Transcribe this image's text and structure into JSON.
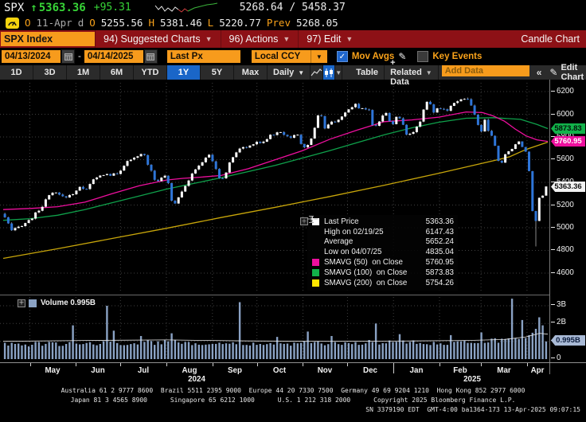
{
  "top": {
    "ticker": "SPX",
    "arrow": "↑",
    "last": "5363.36",
    "change": "+95.31",
    "range": "5268.64 / 5458.37",
    "o_label": "O",
    "date": "11-Apr",
    "freq": "d",
    "o2_label": "O",
    "open": "5255.56",
    "h_label": "H",
    "high": "5381.46",
    "l_label": "L",
    "low": "5220.77",
    "prev_label": "Prev",
    "prev": "5268.05"
  },
  "menubar": {
    "security": "SPX Index",
    "items": [
      {
        "label": "94) Suggested Charts"
      },
      {
        "label": "96) Actions"
      },
      {
        "label": "97) Edit"
      }
    ],
    "right_label": "Candle Chart"
  },
  "toolbar": {
    "date_from": "04/13/2024",
    "date_sep": "-",
    "date_to": "04/14/2025",
    "price_field": "Last Px",
    "currency": "Local CCY",
    "mov_avgs": "Mov Avgs",
    "key_events": "Key Events"
  },
  "tabbar": {
    "periods": [
      "1D",
      "3D",
      "1M",
      "6M",
      "YTD",
      "1Y",
      "5Y",
      "Max"
    ],
    "active_period": "1Y",
    "frequency": "Daily",
    "table": "Table",
    "related": "+ Related Data",
    "add_data_placeholder": "Add Data",
    "edit_chart": "Edit Chart"
  },
  "colors": {
    "green_text": "#37d437",
    "orange_text": "#f9a21a",
    "menubar_red": "#8d1116",
    "tab_blue": "#1a66c8",
    "amber": "#f79b1c",
    "candle_up": "#ffffff",
    "candle_down": "#2e75d8",
    "smavg50": "#ee0f9e",
    "smavg100": "#0fa14b",
    "smavg200": "#c7a50a",
    "volume_bar": "#8aa2c4",
    "volume_avg_line": "#e8e8e8",
    "grid": "#3f3f3f"
  },
  "chart_data": {
    "type": "candlestick+volume",
    "title": "SPX Index 1Y Daily Candle Chart",
    "last_price": 5363.36,
    "y_ticks": [
      6200,
      6000,
      5800,
      5600,
      5400,
      5200,
      5000,
      4800,
      4600
    ],
    "y_range": [
      4466,
      6305
    ],
    "price_badges": [
      {
        "text": "5873.83",
        "price": 5873.83,
        "bg": "#12b24a",
        "fg": "#04130a"
      },
      {
        "text": "5760.95",
        "price": 5760.95,
        "bg": "#ee0f9e",
        "fg": "#ffffff"
      },
      {
        "text": "5363.36",
        "price": 5363.36,
        "bg": "#f2f2f2",
        "fg": "#111111"
      }
    ],
    "month_ticks": [
      0.049,
      0.1335,
      0.2153,
      0.2997,
      0.3842,
      0.4659,
      0.5504,
      0.6322,
      0.7166,
      0.8011,
      0.8774,
      0.9619
    ],
    "year_separator": 0.7166,
    "months": [
      {
        "label": "May",
        "f": 0.091
      },
      {
        "label": "Jun",
        "f": 0.174
      },
      {
        "label": "Jul",
        "f": 0.258
      },
      {
        "label": "Aug",
        "f": 0.342
      },
      {
        "label": "Sep",
        "f": 0.425
      },
      {
        "label": "Oct",
        "f": 0.508
      },
      {
        "label": "Nov",
        "f": 0.591
      },
      {
        "label": "Dec",
        "f": 0.674
      },
      {
        "label": "Jan",
        "f": 0.759
      },
      {
        "label": "Feb",
        "f": 0.839
      },
      {
        "label": "Mar",
        "f": 0.92
      },
      {
        "label": "Apr",
        "f": 0.981
      }
    ],
    "years": [
      {
        "label": "2024",
        "f": 0.355
      },
      {
        "label": "2025",
        "f": 0.861
      }
    ],
    "price_path": [
      [
        0,
        5123
      ],
      [
        0.016,
        4967
      ],
      [
        0.03,
        5012
      ],
      [
        0.05,
        5072
      ],
      [
        0.07,
        5180
      ],
      [
        0.088,
        5308
      ],
      [
        0.1,
        5298
      ],
      [
        0.11,
        5267
      ],
      [
        0.125,
        5290
      ],
      [
        0.14,
        5353
      ],
      [
        0.155,
        5346
      ],
      [
        0.165,
        5421
      ],
      [
        0.185,
        5473
      ],
      [
        0.2,
        5464
      ],
      [
        0.21,
        5475
      ],
      [
        0.225,
        5572
      ],
      [
        0.245,
        5618
      ],
      [
        0.257,
        5667
      ],
      [
        0.263,
        5588
      ],
      [
        0.272,
        5507
      ],
      [
        0.28,
        5399
      ],
      [
        0.29,
        5452
      ],
      [
        0.3,
        5446
      ],
      [
        0.306,
        5346
      ],
      [
        0.311,
        5186
      ],
      [
        0.318,
        5240
      ],
      [
        0.33,
        5344
      ],
      [
        0.345,
        5455
      ],
      [
        0.36,
        5554
      ],
      [
        0.375,
        5626
      ],
      [
        0.379,
        5648
      ],
      [
        0.39,
        5528
      ],
      [
        0.398,
        5408
      ],
      [
        0.41,
        5495
      ],
      [
        0.42,
        5618
      ],
      [
        0.435,
        5702
      ],
      [
        0.45,
        5709
      ],
      [
        0.463,
        5762
      ],
      [
        0.475,
        5746
      ],
      [
        0.49,
        5815
      ],
      [
        0.51,
        5842
      ],
      [
        0.52,
        5815
      ],
      [
        0.532,
        5797
      ],
      [
        0.542,
        5832
      ],
      [
        0.548,
        5705
      ],
      [
        0.557,
        5718
      ],
      [
        0.566,
        5783
      ],
      [
        0.578,
        5995
      ],
      [
        0.585,
        5987
      ],
      [
        0.59,
        5870
      ],
      [
        0.6,
        5917
      ],
      [
        0.612,
        5949
      ],
      [
        0.622,
        5969
      ],
      [
        0.633,
        6032
      ],
      [
        0.646,
        6090
      ],
      [
        0.656,
        6052
      ],
      [
        0.666,
        6050
      ],
      [
        0.673,
        6040
      ],
      [
        0.679,
        5872
      ],
      [
        0.688,
        5931
      ],
      [
        0.696,
        5974
      ],
      [
        0.701,
        6038
      ],
      [
        0.706,
        5971
      ],
      [
        0.714,
        5906
      ],
      [
        0.721,
        5976
      ],
      [
        0.731,
        5950
      ],
      [
        0.741,
        5827
      ],
      [
        0.748,
        5838
      ],
      [
        0.757,
        5855
      ],
      [
        0.766,
        5950
      ],
      [
        0.777,
        6118
      ],
      [
        0.784,
        6101
      ],
      [
        0.789,
        6012
      ],
      [
        0.796,
        6041
      ],
      [
        0.806,
        6044
      ],
      [
        0.813,
        6026
      ],
      [
        0.821,
        6068
      ],
      [
        0.829,
        6116
      ],
      [
        0.84,
        6130
      ],
      [
        0.85,
        6144
      ],
      [
        0.857,
        6117
      ],
      [
        0.863,
        6014
      ],
      [
        0.869,
        5956
      ],
      [
        0.875,
        5862
      ],
      [
        0.879,
        5850
      ],
      [
        0.885,
        5955
      ],
      [
        0.891,
        5849
      ],
      [
        0.9,
        5771
      ],
      [
        0.906,
        5675
      ],
      [
        0.912,
        5522
      ],
      [
        0.92,
        5639
      ],
      [
        0.93,
        5676
      ],
      [
        0.938,
        5713
      ],
      [
        0.945,
        5777
      ],
      [
        0.952,
        5712
      ],
      [
        0.958,
        5693
      ],
      [
        0.963,
        5612
      ],
      [
        0.968,
        5396
      ],
      [
        0.973,
        5074
      ],
      [
        0.978,
        5062
      ],
      [
        0.982,
        4983
      ],
      [
        0.986,
        5456
      ],
      [
        0.99,
        5268
      ],
      [
        0.994,
        5363.36
      ],
      [
        1,
        5363.36
      ]
    ],
    "smavg50": [
      [
        0,
        5160
      ],
      [
        0.05,
        5170
      ],
      [
        0.1,
        5185
      ],
      [
        0.15,
        5225
      ],
      [
        0.2,
        5300
      ],
      [
        0.25,
        5370
      ],
      [
        0.3,
        5420
      ],
      [
        0.33,
        5435
      ],
      [
        0.36,
        5445
      ],
      [
        0.4,
        5460
      ],
      [
        0.45,
        5520
      ],
      [
        0.5,
        5600
      ],
      [
        0.55,
        5680
      ],
      [
        0.6,
        5780
      ],
      [
        0.65,
        5860
      ],
      [
        0.7,
        5935
      ],
      [
        0.75,
        5950
      ],
      [
        0.8,
        5975
      ],
      [
        0.85,
        6020
      ],
      [
        0.88,
        6015
      ],
      [
        0.9,
        5985
      ],
      [
        0.92,
        5940
      ],
      [
        0.94,
        5870
      ],
      [
        0.96,
        5810
      ],
      [
        0.98,
        5775
      ],
      [
        1,
        5760.95
      ]
    ],
    "smavg100": [
      [
        0,
        5065
      ],
      [
        0.05,
        5080
      ],
      [
        0.1,
        5110
      ],
      [
        0.15,
        5160
      ],
      [
        0.2,
        5220
      ],
      [
        0.25,
        5280
      ],
      [
        0.3,
        5340
      ],
      [
        0.35,
        5390
      ],
      [
        0.4,
        5440
      ],
      [
        0.45,
        5495
      ],
      [
        0.5,
        5550
      ],
      [
        0.55,
        5615
      ],
      [
        0.6,
        5680
      ],
      [
        0.65,
        5750
      ],
      [
        0.7,
        5820
      ],
      [
        0.75,
        5880
      ],
      [
        0.8,
        5930
      ],
      [
        0.85,
        5965
      ],
      [
        0.9,
        5970
      ],
      [
        0.95,
        5955
      ],
      [
        0.98,
        5910
      ],
      [
        1,
        5873.83
      ]
    ],
    "smavg200": [
      [
        0,
        4730
      ],
      [
        0.1,
        4815
      ],
      [
        0.2,
        4905
      ],
      [
        0.3,
        4995
      ],
      [
        0.4,
        5090
      ],
      [
        0.5,
        5180
      ],
      [
        0.6,
        5275
      ],
      [
        0.7,
        5375
      ],
      [
        0.8,
        5480
      ],
      [
        0.85,
        5535
      ],
      [
        0.9,
        5590
      ],
      [
        0.93,
        5625
      ],
      [
        0.96,
        5690
      ],
      [
        1,
        5754.26
      ]
    ],
    "wick_overrides": [
      {
        "f": 0.85,
        "high": 6147.43
      },
      {
        "f": 0.981,
        "low": 4835.04
      }
    ],
    "legend": [
      {
        "marker": "square",
        "color": "#ffffff",
        "label": "Last Price",
        "value": "5363.36"
      },
      {
        "marker": "high",
        "color": "#aaaaaa",
        "label": "High on 02/19/25",
        "value": "6147.43"
      },
      {
        "marker": "avg",
        "color": "#aaaaaa",
        "label": "Average",
        "value": "5652.24"
      },
      {
        "marker": "low",
        "color": "#aaaaaa",
        "label": "Low on 04/07/25",
        "value": "4835.04"
      },
      {
        "marker": "square",
        "color": "#ee0f9e",
        "label": "SMAVG (50)  on Close",
        "value": "5760.95"
      },
      {
        "marker": "square",
        "color": "#12b24a",
        "label": "SMAVG (100)  on Close",
        "value": "5873.83"
      },
      {
        "marker": "square",
        "color": "#ffe600",
        "label": "SMAVG (200)  on Close",
        "value": "5754.26"
      }
    ],
    "volume_legend": "Volume 0.995B",
    "volume_axis": {
      "ticks": [
        {
          "label": "3B",
          "v": 3
        },
        {
          "label": "2B",
          "v": 2
        },
        {
          "label": "1B",
          "v": 1
        }
      ],
      "zero_label": "0",
      "badge": {
        "text": "0.995B",
        "v": 0.995,
        "bg": "#a9bad6",
        "fg": "#0a1a3a"
      }
    },
    "volume_base": [
      [
        0,
        0.82
      ],
      [
        0.1,
        0.85
      ],
      [
        0.2,
        0.9
      ],
      [
        0.3,
        0.95
      ],
      [
        0.4,
        0.9
      ],
      [
        0.5,
        0.85
      ],
      [
        0.6,
        0.9
      ],
      [
        0.7,
        0.95
      ],
      [
        0.8,
        0.9
      ],
      [
        0.88,
        1.0
      ],
      [
        0.94,
        1.1
      ],
      [
        0.97,
        1.35
      ],
      [
        1,
        1.55
      ]
    ],
    "volume_avg": [
      [
        0,
        1.0
      ],
      [
        0.15,
        1.05
      ],
      [
        0.3,
        1.08
      ],
      [
        0.45,
        1.02
      ],
      [
        0.6,
        1.0
      ],
      [
        0.75,
        1.02
      ],
      [
        0.85,
        1.05
      ],
      [
        0.92,
        1.1
      ],
      [
        0.96,
        1.25
      ],
      [
        0.985,
        1.45
      ],
      [
        1,
        1.4
      ]
    ],
    "volume_spikes": [
      [
        0.128,
        1.9
      ],
      [
        0.188,
        3.0
      ],
      [
        0.205,
        1.6
      ],
      [
        0.255,
        1.3
      ],
      [
        0.31,
        1.45
      ],
      [
        0.437,
        3.2
      ],
      [
        0.5,
        1.25
      ],
      [
        0.56,
        1.55
      ],
      [
        0.6,
        1.3
      ],
      [
        0.683,
        2.0
      ],
      [
        0.73,
        1.4
      ],
      [
        0.82,
        1.35
      ],
      [
        0.88,
        1.5
      ],
      [
        0.932,
        3.4
      ],
      [
        0.955,
        2.2
      ],
      [
        0.975,
        1.7
      ],
      [
        0.986,
        2.35
      ],
      [
        0.99,
        1.9
      ]
    ]
  },
  "footer": {
    "line1": [
      "Australia 61 2 9777 8600",
      "Brazil 5511 2395 9000",
      "Europe 44 20 7330 7500",
      "Germany 49 69 9204 1210",
      "Hong Kong 852 2977 6000"
    ],
    "line2": [
      "Japan 81 3 4565 8900",
      "Singapore 65 6212 1000",
      "U.S. 1 212 318 2000",
      "Copyright 2025 Bloomberg Finance L.P."
    ],
    "line3": "SN 3379190 EDT  GMT-4:00 ba1364-173 13-Apr-2025 09:07:15"
  }
}
